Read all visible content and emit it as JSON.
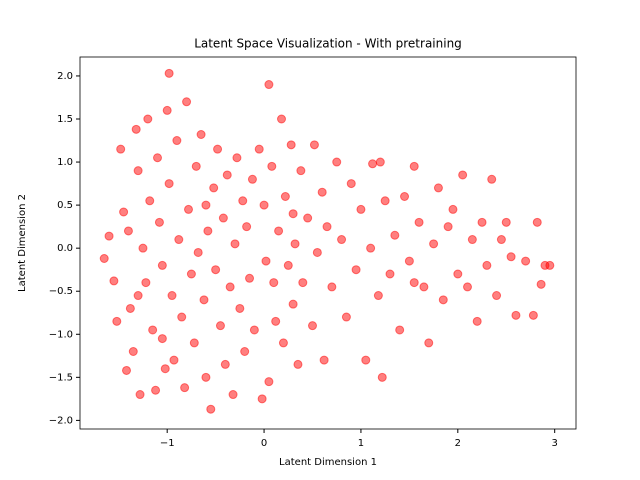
{
  "chart_data": {
    "type": "scatter",
    "title": "Latent Space Visualization - With pretraining",
    "x_label": "Latent Dimension 1",
    "y_label": "Latent Dimension 2",
    "color": "#ff0000",
    "xlim": [
      -1.9,
      3.22
    ],
    "ylim": [
      -2.1,
      2.22
    ],
    "xticks": [
      {
        "value": -1,
        "label": "−1"
      },
      0,
      1,
      2,
      3
    ],
    "yticks": [
      {
        "value": -2,
        "label": "−2.0"
      },
      {
        "value": -1.5,
        "label": "−1.5"
      },
      {
        "value": -1,
        "label": "−1.0"
      },
      {
        "value": -0.5,
        "label": "−0.5"
      },
      {
        "value": 0,
        "label": "0.0"
      },
      {
        "value": 0.5,
        "label": "0.5"
      },
      {
        "value": 1,
        "label": "1.0"
      },
      {
        "value": 1.5,
        "label": "1.5"
      },
      {
        "value": 2,
        "label": "2.0"
      }
    ],
    "x": [
      -1.6,
      -1.65,
      -1.55,
      -1.52,
      -1.48,
      -1.45,
      -1.42,
      -1.4,
      -1.38,
      -1.35,
      -1.32,
      -1.3,
      -1.28,
      -1.25,
      -1.22,
      -1.2,
      -1.18,
      -1.15,
      -1.12,
      -1.1,
      -1.08,
      -1.05,
      -1.02,
      -1.0,
      -0.98,
      -0.95,
      -0.93,
      -0.98,
      -0.9,
      -0.88,
      -0.85,
      -0.82,
      -0.8,
      -0.78,
      -0.75,
      -0.72,
      -0.7,
      -0.68,
      -0.65,
      -0.62,
      -0.6,
      -0.58,
      -0.55,
      -0.52,
      -0.5,
      -0.48,
      -0.45,
      -0.42,
      -0.4,
      -0.38,
      -0.35,
      -0.32,
      -0.3,
      -0.28,
      -0.25,
      -0.22,
      -0.2,
      -0.18,
      -0.15,
      -0.12,
      -0.1,
      -0.05,
      -0.02,
      0.0,
      0.02,
      0.05,
      0.05,
      0.08,
      0.1,
      0.12,
      0.15,
      0.18,
      0.2,
      0.22,
      0.25,
      0.28,
      0.3,
      0.32,
      0.35,
      0.38,
      0.4,
      0.45,
      0.5,
      0.52,
      0.55,
      0.6,
      0.62,
      0.65,
      0.7,
      0.75,
      0.8,
      0.85,
      0.9,
      0.95,
      1.0,
      1.05,
      1.1,
      1.12,
      1.18,
      1.22,
      1.25,
      1.3,
      1.35,
      1.4,
      1.45,
      1.5,
      1.55,
      1.6,
      1.65,
      1.7,
      1.75,
      1.8,
      1.85,
      1.9,
      1.95,
      2.0,
      2.05,
      2.1,
      2.15,
      2.2,
      2.25,
      2.3,
      2.35,
      2.4,
      2.45,
      2.5,
      2.55,
      2.6,
      2.7,
      2.78,
      2.82,
      2.86,
      2.9,
      2.95,
      1.2,
      -1.05,
      -0.6,
      0.3,
      1.55,
      -1.3
    ],
    "y": [
      0.14,
      -0.12,
      -0.38,
      -0.85,
      1.15,
      0.42,
      -1.42,
      0.2,
      -0.7,
      -1.2,
      1.38,
      0.9,
      -1.7,
      0.0,
      -0.4,
      1.5,
      0.55,
      -0.95,
      -1.65,
      1.05,
      0.3,
      -0.2,
      -1.4,
      1.6,
      0.75,
      -0.55,
      -1.3,
      2.03,
      1.25,
      0.1,
      -0.8,
      -1.62,
      1.7,
      0.45,
      -0.3,
      -1.1,
      0.95,
      -0.05,
      1.32,
      -0.6,
      -1.5,
      0.2,
      -1.87,
      0.7,
      -0.25,
      1.15,
      -0.9,
      0.35,
      -1.35,
      0.85,
      -0.45,
      -1.7,
      0.05,
      1.05,
      -0.7,
      0.55,
      -1.2,
      0.25,
      -0.35,
      0.8,
      -0.95,
      1.15,
      -1.75,
      0.5,
      -0.15,
      1.9,
      -1.55,
      0.95,
      -0.4,
      -0.85,
      0.2,
      1.5,
      -1.1,
      0.6,
      -0.2,
      1.2,
      -0.65,
      0.05,
      -1.35,
      0.9,
      -0.4,
      0.35,
      -0.9,
      1.2,
      -0.05,
      0.65,
      -1.3,
      0.25,
      -0.45,
      1.0,
      0.1,
      -0.8,
      0.75,
      -0.25,
      0.45,
      -1.3,
      0.0,
      0.98,
      -0.55,
      -1.5,
      0.55,
      -0.3,
      0.15,
      -0.95,
      0.6,
      -0.15,
      0.95,
      0.3,
      -0.45,
      -1.1,
      0.05,
      0.7,
      -0.6,
      0.25,
      0.45,
      -0.3,
      0.85,
      -0.45,
      0.1,
      -0.85,
      0.3,
      -0.2,
      0.8,
      -0.55,
      0.1,
      0.3,
      -0.1,
      -0.78,
      -0.15,
      -0.78,
      0.3,
      -0.42,
      -0.2,
      -0.2,
      1.0,
      -1.05,
      0.5,
      0.4,
      -0.4,
      -0.55
    ]
  }
}
